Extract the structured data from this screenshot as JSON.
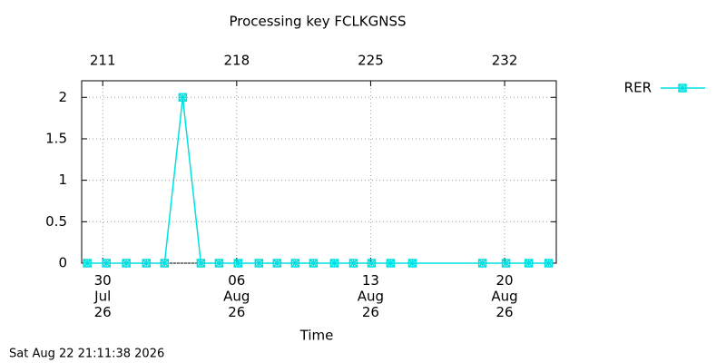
{
  "chart_data": {
    "type": "line",
    "title": "Processing key FCLKGNSS",
    "xlabel": "Time",
    "timestamp": "Sat Aug 22 21:11:38 2026",
    "x": [
      210.19,
      211.19,
      212.23,
      213.28,
      214.23,
      215.18,
      216.13,
      217.08,
      218.07,
      219.16,
      220.11,
      221.06,
      222.01,
      223.1,
      224.1,
      225.05,
      226.04,
      227.18,
      230.84,
      232.07,
      233.26,
      234.3
    ],
    "series": [
      {
        "name": "RER",
        "color": "#00e0e0",
        "values": [
          0,
          0,
          0,
          0,
          0,
          2,
          0,
          0,
          0,
          0,
          0,
          0,
          0,
          0,
          0,
          0,
          0,
          0,
          0,
          0,
          0,
          0
        ]
      }
    ],
    "xlim": [
      209.9,
      234.7
    ],
    "xticks": [
      {
        "value": 211,
        "label": "30\nJul\n26"
      },
      {
        "value": 218,
        "label": "06\nAug\n26"
      },
      {
        "value": 225,
        "label": "13\nAug\n26"
      },
      {
        "value": 232,
        "label": "20\nAug\n26"
      }
    ],
    "x2ticks": [
      211,
      218,
      225,
      232
    ],
    "ylim": [
      0,
      2.2
    ],
    "yticks": [
      0,
      0.5,
      1,
      1.5,
      2
    ],
    "grid": true,
    "legend": "outside-right"
  }
}
